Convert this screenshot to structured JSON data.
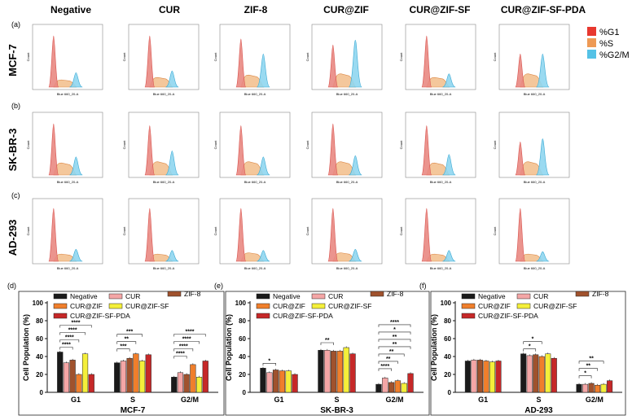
{
  "columns": [
    "Negative",
    "CUR",
    "ZIF-8",
    "CUR@ZIF",
    "CUR@ZIF-SF",
    "CUR@ZIF-SF-PDA"
  ],
  "rows": [
    {
      "letter": "(a)",
      "label": "MCF-7"
    },
    {
      "letter": "(b)",
      "label": "SK-BR-3"
    },
    {
      "letter": "(c)",
      "label": "AD-293"
    }
  ],
  "histogram_axes": {
    "ylabel": "Count",
    "xlabel": "Blue 660_20-A"
  },
  "top_legend": [
    {
      "label": "%G1",
      "color": "#e8382f"
    },
    {
      "label": "%S",
      "color": "#ee9a55"
    },
    {
      "label": "%G2/M",
      "color": "#55c2e6"
    }
  ],
  "colors": {
    "g1": "#e98882",
    "g1_stroke": "#d9534f",
    "s": "#f2bd8a",
    "s_stroke": "#dc8a4a",
    "g2m": "#8fd6ef",
    "g2m_stroke": "#3aa9d4"
  },
  "histograms": [
    [
      {
        "g1": 0.85,
        "s": 0.12,
        "g2m": 0.24
      },
      {
        "g1": 0.85,
        "s": 0.16,
        "g2m": 0.27
      },
      {
        "g1": 0.8,
        "s": 0.2,
        "g2m": 0.55
      },
      {
        "g1": 0.7,
        "s": 0.22,
        "g2m": 0.78
      },
      {
        "g1": 0.85,
        "s": 0.16,
        "g2m": 0.22
      },
      {
        "g1": 0.55,
        "s": 0.22,
        "g2m": 0.55
      }
    ],
    [
      {
        "g1": 0.85,
        "s": 0.2,
        "g2m": 0.3
      },
      {
        "g1": 0.82,
        "s": 0.22,
        "g2m": 0.4
      },
      {
        "g1": 0.82,
        "s": 0.22,
        "g2m": 0.3
      },
      {
        "g1": 0.85,
        "s": 0.22,
        "g2m": 0.32
      },
      {
        "g1": 0.82,
        "s": 0.2,
        "g2m": 0.34
      },
      {
        "g1": 0.55,
        "s": 0.22,
        "g2m": 0.6
      }
    ],
    [
      {
        "g1": 0.88,
        "s": 0.12,
        "g2m": 0.2
      },
      {
        "g1": 0.88,
        "s": 0.12,
        "g2m": 0.18
      },
      {
        "g1": 0.88,
        "s": 0.14,
        "g2m": 0.18
      },
      {
        "g1": 0.88,
        "s": 0.14,
        "g2m": 0.2
      },
      {
        "g1": 0.88,
        "s": 0.12,
        "g2m": 0.18
      },
      {
        "g1": 0.88,
        "s": 0.12,
        "g2m": 0.16
      }
    ]
  ],
  "chart_data": [
    {
      "panel": "(d)",
      "type": "bar",
      "title": "MCF-7",
      "xlabel": "MCF-7",
      "ylabel": "Cell Population (%)",
      "ylim": [
        0,
        100
      ],
      "yticks": [
        0,
        20,
        40,
        60,
        80,
        100
      ],
      "categories": [
        "G1",
        "S",
        "G2/M"
      ],
      "series": [
        {
          "name": "Negative",
          "color": "#1a1a1a",
          "values": [
            45,
            33,
            17
          ]
        },
        {
          "name": "CUR",
          "color": "#f4a6a6",
          "values": [
            33,
            35,
            22
          ]
        },
        {
          "name": "ZIF-8",
          "color": "#a0522d",
          "values": [
            36,
            38,
            20
          ]
        },
        {
          "name": "CUR@ZIF",
          "color": "#f07f2c",
          "values": [
            20,
            43,
            31
          ]
        },
        {
          "name": "CUR@ZIF-SF",
          "color": "#f4ef3a",
          "values": [
            43,
            35,
            17
          ]
        },
        {
          "name": "CUR@ZIF-SF-PDA",
          "color": "#c62828",
          "values": [
            20,
            42,
            35
          ]
        }
      ],
      "annotations": [
        {
          "category": "G1",
          "label": "****"
        },
        {
          "category": "G1",
          "label": "****"
        },
        {
          "category": "G1",
          "label": "****"
        },
        {
          "category": "G1",
          "label": "****"
        },
        {
          "category": "S",
          "label": "***"
        },
        {
          "category": "S",
          "label": "**"
        },
        {
          "category": "S",
          "label": "***"
        },
        {
          "category": "G2/M",
          "label": "****"
        },
        {
          "category": "G2/M",
          "label": "****"
        },
        {
          "category": "G2/M",
          "label": "****"
        },
        {
          "category": "G2/M",
          "label": "****"
        }
      ]
    },
    {
      "panel": "(e)",
      "type": "bar",
      "title": "SK-BR-3",
      "xlabel": "SK-BR-3",
      "ylabel": "Cell Population (%)",
      "ylim": [
        0,
        100
      ],
      "yticks": [
        0,
        20,
        40,
        60,
        80,
        100
      ],
      "categories": [
        "G1",
        "S",
        "G2/M"
      ],
      "series": [
        {
          "name": "Negative",
          "color": "#1a1a1a",
          "values": [
            27,
            47,
            9
          ]
        },
        {
          "name": "CUR",
          "color": "#f4a6a6",
          "values": [
            22,
            47,
            16
          ]
        },
        {
          "name": "ZIF-8",
          "color": "#a0522d",
          "values": [
            25,
            46,
            11
          ]
        },
        {
          "name": "CUR@ZIF",
          "color": "#f07f2c",
          "values": [
            24,
            46,
            13
          ]
        },
        {
          "name": "CUR@ZIF-SF",
          "color": "#f4ef3a",
          "values": [
            24,
            50,
            10
          ]
        },
        {
          "name": "CUR@ZIF-SF-PDA",
          "color": "#c62828",
          "values": [
            20,
            43,
            21
          ]
        }
      ],
      "annotations": [
        {
          "category": "G1",
          "label": "*"
        },
        {
          "category": "S",
          "label": "**"
        },
        {
          "category": "G2/M",
          "label": "****"
        },
        {
          "category": "G2/M",
          "label": "**"
        },
        {
          "category": "G2/M",
          "label": "**"
        },
        {
          "category": "G2/M",
          "label": "**"
        },
        {
          "category": "G2/M",
          "label": "**"
        },
        {
          "category": "G2/M",
          "label": "*"
        },
        {
          "category": "G2/M",
          "label": "****"
        }
      ]
    },
    {
      "panel": "(f)",
      "type": "bar",
      "title": "AD-293",
      "xlabel": "AD-293",
      "ylabel": "Cell Population (%)",
      "ylim": [
        0,
        100
      ],
      "yticks": [
        0,
        20,
        40,
        60,
        80,
        100
      ],
      "categories": [
        "G1",
        "S",
        "G2/M"
      ],
      "series": [
        {
          "name": "Negative",
          "color": "#1a1a1a",
          "values": [
            35,
            43,
            9
          ]
        },
        {
          "name": "CUR",
          "color": "#f4a6a6",
          "values": [
            36,
            41,
            9
          ]
        },
        {
          "name": "ZIF-8",
          "color": "#a0522d",
          "values": [
            36,
            42,
            10
          ]
        },
        {
          "name": "CUR@ZIF",
          "color": "#f07f2c",
          "values": [
            35,
            40,
            8
          ]
        },
        {
          "name": "CUR@ZIF-SF",
          "color": "#f4ef3a",
          "values": [
            34,
            43,
            9
          ]
        },
        {
          "name": "CUR@ZIF-SF-PDA",
          "color": "#c62828",
          "values": [
            35,
            38,
            13
          ]
        }
      ],
      "annotations": [
        {
          "category": "S",
          "label": "*"
        },
        {
          "category": "S",
          "label": "*"
        },
        {
          "category": "G2/M",
          "label": "*"
        },
        {
          "category": "G2/M",
          "label": "**"
        },
        {
          "category": "G2/M",
          "label": "**"
        }
      ]
    }
  ]
}
